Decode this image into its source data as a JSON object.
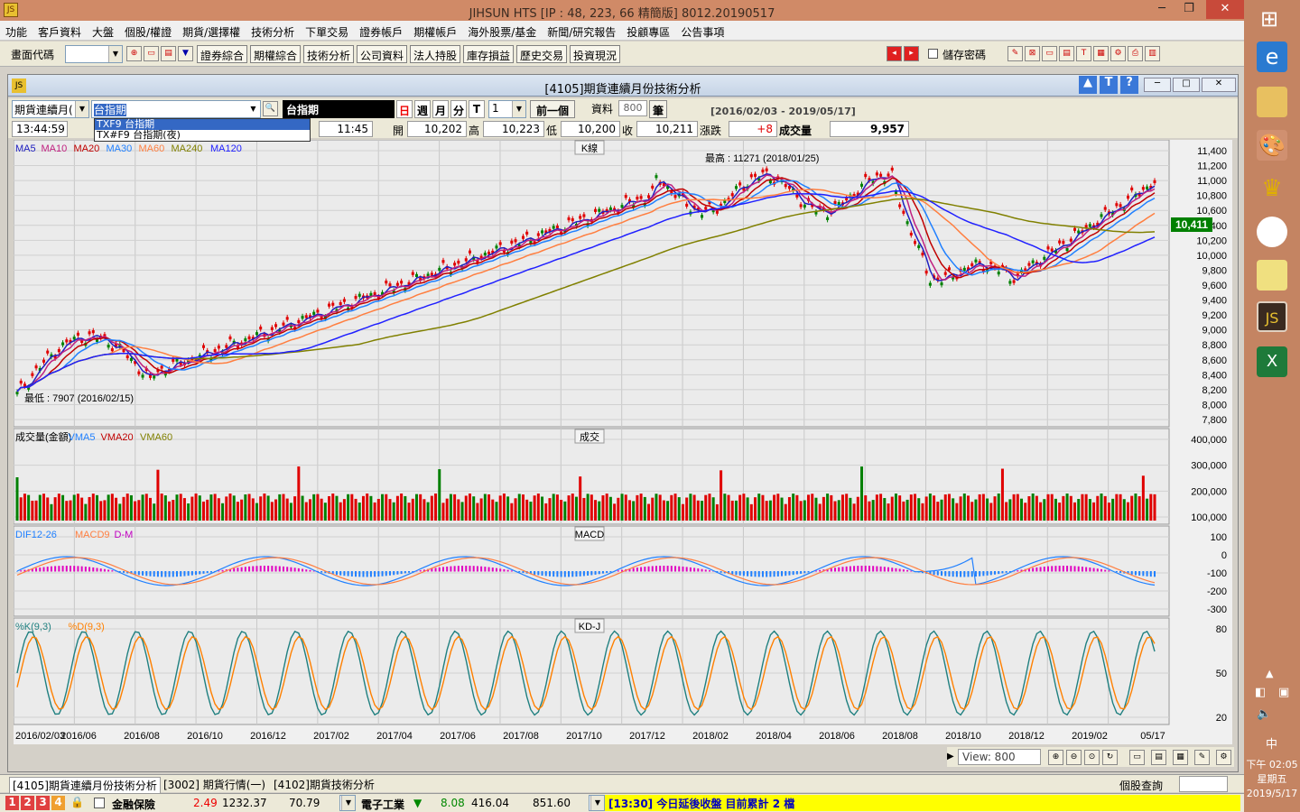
{
  "window": {
    "title": "JIHSUN HTS    [IP : 48, 223, 66 精簡版] 8012.20190517",
    "min": "─",
    "restore": "❐",
    "close": "✕"
  },
  "menu": [
    "功能",
    "客戶資料",
    "大盤",
    "個股/權證",
    "期貨/選擇權",
    "技術分析",
    "下單交易",
    "證券帳戶",
    "期權帳戶",
    "海外股票/基金",
    "新聞/研究報告",
    "投顧專區",
    "公告事項"
  ],
  "toolbar": {
    "screen_code_label": "畫面代碼",
    "buttons": [
      "證券綜合",
      "期權綜合",
      "技術分析",
      "公司資料",
      "法人持股",
      "庫存損益",
      "歷史交易",
      "投資現況"
    ],
    "save_pwd_label": "儲存密碼"
  },
  "chart_window": {
    "title": "[4105]期貨連續月份技術分析",
    "mode_select": "期貨連續月(",
    "symbol_input": "台指期",
    "symbol_display": "台指期",
    "dropdown_options": [
      "TXF9 台指期",
      "TX#F9 台指期(夜)"
    ],
    "period_buttons": [
      "日",
      "週",
      "月",
      "分",
      "T"
    ],
    "count_value": "1",
    "prev_button": "前一個",
    "data_label": "資料",
    "data_count": "800",
    "unit": "筆",
    "range": "[2016/02/03 - 2019/05/17]",
    "time": "13:44:59",
    "quote_time": "11:45",
    "open_label": "開",
    "open": "10,202",
    "high_label": "高",
    "high": "10,223",
    "low_label": "低",
    "low": "10,200",
    "close_label": "收",
    "close": "10,211",
    "change_label": "漲跌",
    "change": "+8",
    "volume_label": "成交量",
    "volume": "9,957"
  },
  "panels": {
    "kline": {
      "title": "K線",
      "legend": [
        {
          "name": "MA5",
          "color": "#2020c0"
        },
        {
          "name": "MA10",
          "color": "#c02080"
        },
        {
          "name": "MA20",
          "color": "#c00000"
        },
        {
          "name": "MA30",
          "color": "#2080ff"
        },
        {
          "name": "MA60",
          "color": "#ff7f40"
        },
        {
          "name": "MA240",
          "color": "#808000"
        },
        {
          "name": "MA120",
          "color": "#2020ff"
        }
      ],
      "high_note": "最高 : 11271 (2018/01/25)",
      "low_note": "最低 : 7907 (2016/02/15)",
      "last_price": "10,411",
      "y_ticks": [
        "11,400",
        "11,200",
        "11,000",
        "10,800",
        "10,600",
        "10,400",
        "10,200",
        "10,000",
        "9,800",
        "9,600",
        "9,400",
        "9,200",
        "9,000",
        "8,800",
        "8,600",
        "8,400",
        "8,200",
        "8,000",
        "7,800"
      ]
    },
    "volume": {
      "title": "成交",
      "legend": [
        {
          "name": "成交量(金額)",
          "color": "#000000"
        },
        {
          "name": "VMA5",
          "color": "#2080ff"
        },
        {
          "name": "VMA20",
          "color": "#c00000"
        },
        {
          "name": "VMA60",
          "color": "#808000"
        }
      ],
      "y_ticks": [
        "400,000",
        "300,000",
        "200,000",
        "100,000"
      ]
    },
    "macd": {
      "title": "MACD",
      "legend": [
        {
          "name": "DIF12-26",
          "color": "#2080ff"
        },
        {
          "name": "MACD9",
          "color": "#ff7f40"
        },
        {
          "name": "D-M",
          "color": "#c000c0"
        }
      ],
      "y_ticks": [
        "100",
        "0",
        "-100",
        "-200",
        "-300"
      ]
    },
    "kd": {
      "title": "KD-J",
      "legend": [
        {
          "name": "%K(9,3)",
          "color": "#208080"
        },
        {
          "name": "%D(9,3)",
          "color": "#ff8000"
        }
      ],
      "y_ticks": [
        "80",
        "50",
        "20"
      ]
    }
  },
  "x_labels": [
    "2016/02/03",
    "2016/06",
    "2016/08",
    "2016/10",
    "2016/12",
    "2017/02",
    "2017/04",
    "2017/06",
    "2017/08",
    "2017/10",
    "2017/12",
    "2018/02",
    "2018/04",
    "2018/06",
    "2018/08",
    "2018/10",
    "2018/12",
    "2019/02",
    "05/17"
  ],
  "view_label": "View: 800",
  "tabs": [
    "[4105]期貨連續月份技術分析",
    "[3002] 期貨行情(一)",
    "[4102]期貨技術分析"
  ],
  "stock_query_label": "個股查詢",
  "status": {
    "nums": [
      "1",
      "2",
      "3",
      "4"
    ],
    "sector1": "金融保險",
    "s1_change": "2.49",
    "s1_index": "1232.37",
    "s1_vol": "70.79",
    "sector2": "電子工業",
    "s2_change": "8.08",
    "s2_index": "416.04",
    "s2_vol": "851.60",
    "marquee": "[13:30] 今日延後收盤 目前累計 2 檔"
  },
  "clock": {
    "time": "下午 02:05",
    "weekday": "星期五",
    "date": "2019/5/17",
    "ime": "中"
  }
}
